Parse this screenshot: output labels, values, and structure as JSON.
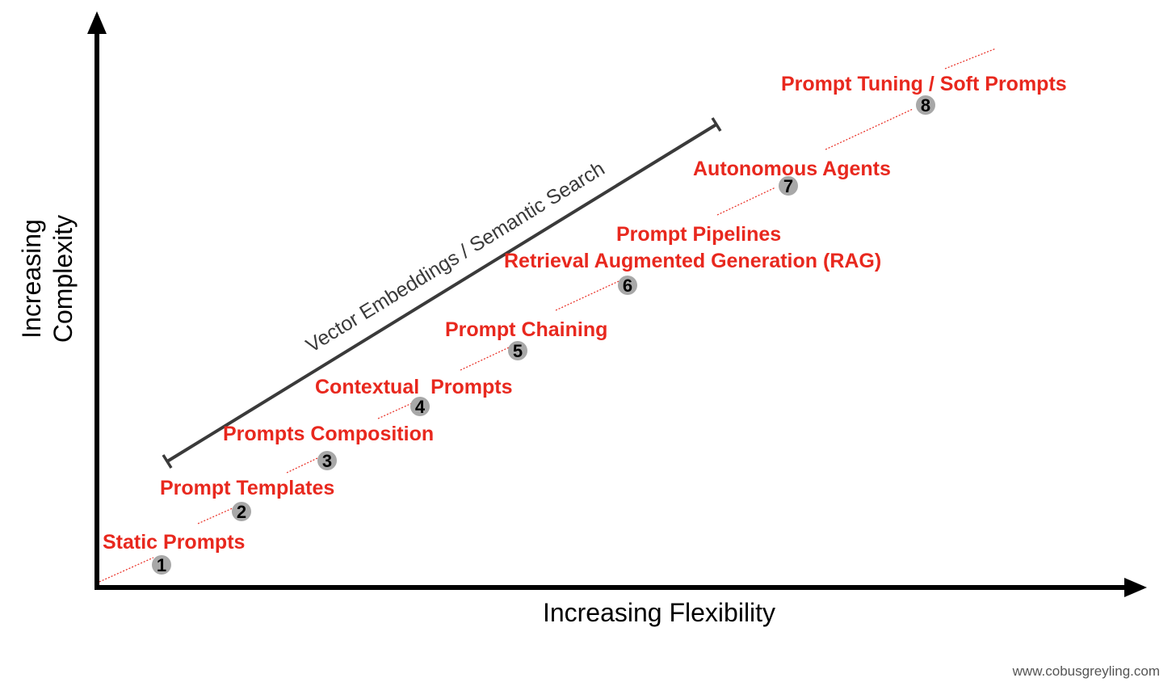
{
  "axes": {
    "x_label": "Increasing Flexibility",
    "y_label_line1": "Increasing",
    "y_label_line2": "Complexity"
  },
  "band": {
    "label": "Vector Embeddings / Semantic Search"
  },
  "stages": [
    {
      "number": "1",
      "label": "Static Prompts"
    },
    {
      "number": "2",
      "label": "Prompt Templates"
    },
    {
      "number": "3",
      "label": "Prompts Composition"
    },
    {
      "number": "4",
      "label": "Contextual  Prompts"
    },
    {
      "number": "5",
      "label": "Prompt Chaining"
    },
    {
      "number": "6",
      "label": "Retrieval Augmented Generation (RAG)",
      "label_extra": "Prompt Pipelines"
    },
    {
      "number": "7",
      "label": "Autonomous Agents"
    },
    {
      "number": "8",
      "label": "Prompt Tuning / Soft Prompts"
    }
  ],
  "colors": {
    "accent": "#e8281e",
    "axis": "#000000",
    "band": "#3a3a3a",
    "badge_fill": "#a8a8a8",
    "watermark": "#555555"
  },
  "watermark": "www.cobusgreyling.com"
}
